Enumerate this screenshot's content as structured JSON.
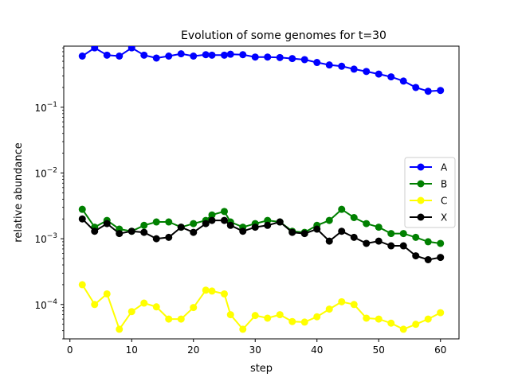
{
  "chart_data": {
    "type": "line",
    "title": "Evolution of some genomes for t=30",
    "xlabel": "step",
    "ylabel": "relative abundance",
    "yscale": "log",
    "xlim": [
      -1,
      63
    ],
    "ylim": [
      3e-05,
      0.85
    ],
    "xticks": [
      0,
      10,
      20,
      30,
      40,
      50,
      60
    ],
    "xtick_labels": [
      "0",
      "10",
      "20",
      "30",
      "40",
      "50",
      "60"
    ],
    "yticks": [
      0.0001,
      0.001,
      0.01,
      0.1
    ],
    "ytick_labels": [
      {
        "base": "10",
        "exp": "−4"
      },
      {
        "base": "10",
        "exp": "−3"
      },
      {
        "base": "10",
        "exp": "−2"
      },
      {
        "base": "10",
        "exp": "−1"
      }
    ],
    "legend_position": "center-right",
    "grid": false,
    "x": [
      2,
      4,
      6,
      8,
      10,
      12,
      14,
      16,
      18,
      20,
      22,
      23,
      25,
      26,
      28,
      30,
      32,
      34,
      36,
      38,
      40,
      42,
      44,
      46,
      48,
      50,
      52,
      54,
      56,
      58,
      60
    ],
    "series": [
      {
        "name": "A",
        "color": "#0000ff",
        "values": [
          0.6,
          0.8,
          0.62,
          0.6,
          0.8,
          0.62,
          0.56,
          0.6,
          0.65,
          0.6,
          0.63,
          0.62,
          0.62,
          0.64,
          0.63,
          0.58,
          0.58,
          0.57,
          0.55,
          0.53,
          0.48,
          0.44,
          0.42,
          0.38,
          0.35,
          0.32,
          0.29,
          0.25,
          0.2,
          0.175,
          0.18
        ]
      },
      {
        "name": "B",
        "color": "#008000",
        "values": [
          0.0028,
          0.0015,
          0.0019,
          0.0014,
          0.0013,
          0.0016,
          0.0018,
          0.0018,
          0.0015,
          0.0017,
          0.0019,
          0.0023,
          0.0026,
          0.0018,
          0.0015,
          0.0017,
          0.0019,
          0.0018,
          0.0013,
          0.00125,
          0.0016,
          0.0019,
          0.0028,
          0.0021,
          0.0017,
          0.0015,
          0.0012,
          0.0012,
          0.00105,
          0.0009,
          0.00085
        ]
      },
      {
        "name": "C",
        "color": "#ffff00",
        "values": [
          0.0002,
          0.0001,
          0.000145,
          4.2e-05,
          7.8e-05,
          0.000105,
          9.2e-05,
          6e-05,
          6e-05,
          9e-05,
          0.000165,
          0.00016,
          0.000145,
          7e-05,
          4.2e-05,
          6.8e-05,
          6.2e-05,
          7e-05,
          5.5e-05,
          5.4e-05,
          6.5e-05,
          8.5e-05,
          0.00011,
          0.0001,
          6.2e-05,
          6e-05,
          5.2e-05,
          4.2e-05,
          5e-05,
          6e-05,
          7.5e-05
        ]
      },
      {
        "name": "X",
        "color": "#000000",
        "values": [
          0.002,
          0.0013,
          0.0017,
          0.0012,
          0.0013,
          0.00125,
          0.001,
          0.00105,
          0.0015,
          0.00125,
          0.0017,
          0.0019,
          0.0019,
          0.0016,
          0.0013,
          0.0015,
          0.0016,
          0.0018,
          0.00125,
          0.0012,
          0.0014,
          0.00092,
          0.0013,
          0.00105,
          0.00085,
          0.00092,
          0.00078,
          0.00078,
          0.00055,
          0.00048,
          0.00052
        ]
      }
    ]
  }
}
